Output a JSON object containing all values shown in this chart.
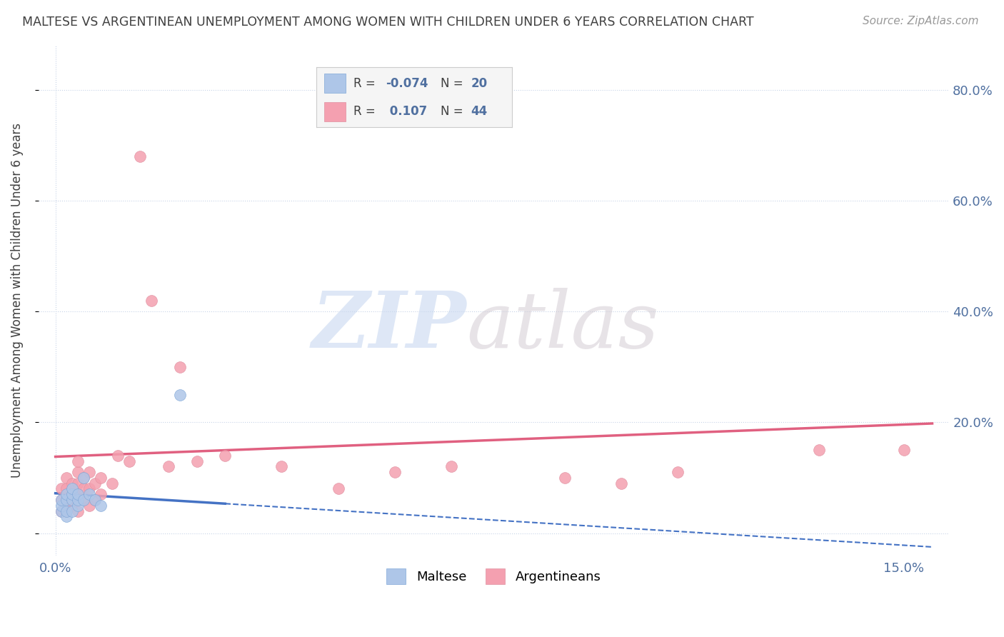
{
  "title": "MALTESE VS ARGENTINEAN UNEMPLOYMENT AMONG WOMEN WITH CHILDREN UNDER 6 YEARS CORRELATION CHART",
  "source": "Source: ZipAtlas.com",
  "ylabel": "Unemployment Among Women with Children Under 6 years",
  "ylabel_ticks": [
    0.0,
    0.2,
    0.4,
    0.6,
    0.8
  ],
  "ylabel_labels": [
    "",
    "20.0%",
    "40.0%",
    "60.0%",
    "80.0%"
  ],
  "xlim": [
    -0.003,
    0.158
  ],
  "ylim": [
    -0.04,
    0.88
  ],
  "maltese_color": "#aec6e8",
  "argentinean_color": "#f4a0b0",
  "maltese_line_color": "#4472c4",
  "argentinean_line_color": "#e06080",
  "watermark_color_zip": "#c8d8f0",
  "watermark_color_atlas": "#d0c8d0",
  "tick_label_color": "#5070a0",
  "background_color": "#ffffff",
  "grid_color": "#c8d4e8",
  "title_color": "#404040",
  "maltese_x": [
    0.001,
    0.001,
    0.001,
    0.002,
    0.002,
    0.002,
    0.002,
    0.003,
    0.003,
    0.003,
    0.003,
    0.004,
    0.004,
    0.004,
    0.005,
    0.005,
    0.006,
    0.007,
    0.008,
    0.022
  ],
  "maltese_y": [
    0.04,
    0.05,
    0.06,
    0.03,
    0.04,
    0.06,
    0.07,
    0.04,
    0.06,
    0.07,
    0.08,
    0.05,
    0.06,
    0.07,
    0.06,
    0.1,
    0.07,
    0.06,
    0.05,
    0.25
  ],
  "argentinean_x": [
    0.001,
    0.001,
    0.001,
    0.002,
    0.002,
    0.002,
    0.002,
    0.003,
    0.003,
    0.003,
    0.003,
    0.004,
    0.004,
    0.004,
    0.004,
    0.004,
    0.005,
    0.005,
    0.005,
    0.006,
    0.006,
    0.006,
    0.007,
    0.007,
    0.008,
    0.008,
    0.01,
    0.011,
    0.013,
    0.015,
    0.017,
    0.02,
    0.022,
    0.025,
    0.03,
    0.04,
    0.05,
    0.06,
    0.07,
    0.09,
    0.1,
    0.11,
    0.135,
    0.15
  ],
  "argentinean_y": [
    0.04,
    0.06,
    0.08,
    0.04,
    0.06,
    0.08,
    0.1,
    0.05,
    0.06,
    0.07,
    0.09,
    0.04,
    0.07,
    0.09,
    0.11,
    0.13,
    0.06,
    0.08,
    0.1,
    0.05,
    0.08,
    0.11,
    0.06,
    0.09,
    0.07,
    0.1,
    0.09,
    0.14,
    0.13,
    0.68,
    0.42,
    0.12,
    0.3,
    0.13,
    0.14,
    0.12,
    0.08,
    0.11,
    0.12,
    0.1,
    0.09,
    0.11,
    0.15,
    0.15
  ],
  "arg_trend_x0": 0.0,
  "arg_trend_y0": 0.138,
  "arg_trend_x1": 0.155,
  "arg_trend_y1": 0.198,
  "malt_trend_x0": 0.0,
  "malt_trend_y0": 0.072,
  "malt_trend_x1": 0.155,
  "malt_trend_y1": -0.025
}
